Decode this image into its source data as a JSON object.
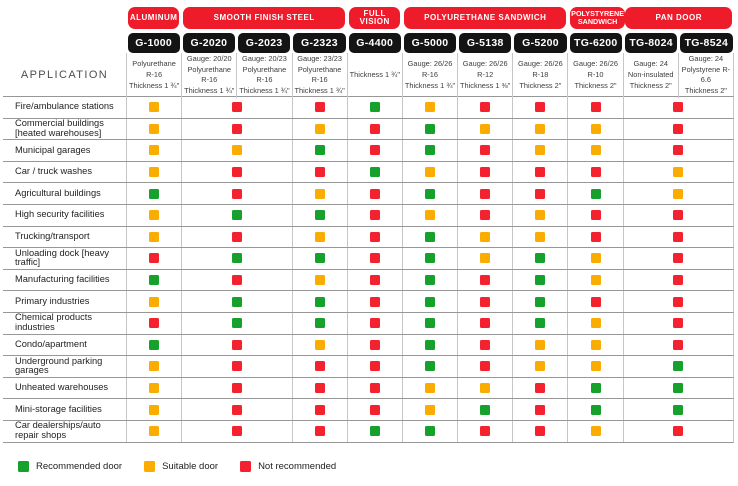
{
  "application_header": "APPLICATION",
  "colors": {
    "category_pill_red": "#EE1B2B",
    "model_pill_black": "#141414",
    "recommended_green": "#16A02C",
    "suitable_yellow": "#FAAD00",
    "not_recommended_red": "#F4222F",
    "row_line": "#979797",
    "column_line": "#C6C6C6"
  },
  "categories": [
    {
      "label": "ALUMINUM",
      "span": 1
    },
    {
      "label": "SMOOTH FINISH STEEL",
      "span": 3
    },
    {
      "label": "FULL VISION",
      "span": 1
    },
    {
      "label": "POLYURETHANE SANDWICH",
      "span": 3
    },
    {
      "label": "POLYSTYRENE SANDWICH",
      "span": 1
    },
    {
      "label": "PAN DOOR",
      "span": 2
    }
  ],
  "models": [
    {
      "name": "G-1000",
      "spec": [
        "Polyurethane R-16",
        "Thickness 1 ¾\""
      ]
    },
    {
      "name": "G-2020",
      "spec": [
        "Gauge: 20/20",
        "Polyurethane R-16",
        "Thickness 1 ¾\""
      ]
    },
    {
      "name": "G-2023",
      "spec": [
        "Gauge: 20/23",
        "Polyurethane R-16",
        "Thickness 1 ¾\""
      ]
    },
    {
      "name": "G-2323",
      "spec": [
        "Gauge: 23/23",
        "Polyurethane R-16",
        "Thickness 1 ¾\""
      ]
    },
    {
      "name": "G-4400",
      "spec": [
        "Thickness 1 ¾\""
      ]
    },
    {
      "name": "G-5000",
      "spec": [
        "Gauge: 26/26",
        "R-16",
        "Thickness 1 ¾\""
      ]
    },
    {
      "name": "G-5138",
      "spec": [
        "Gauge: 26/26",
        "R-12",
        "Thickness 1 ⅜\""
      ]
    },
    {
      "name": "G-5200",
      "spec": [
        "Gauge: 26/26",
        "R-18",
        "Thickness 2\""
      ]
    },
    {
      "name": "TG-6200",
      "spec": [
        "Gauge: 26/26",
        "R-10",
        "Thickness 2\""
      ]
    },
    {
      "name": "TG-8024",
      "spec": [
        "Gauge: 24",
        "Non-insulated",
        "Thickness 2\""
      ]
    },
    {
      "name": "TG-8524",
      "spec": [
        "Gauge: 24",
        "Polystyrene R-6.6",
        "Thickness 2\""
      ]
    }
  ],
  "legend": [
    {
      "key": "recommended",
      "label": "Recommended door"
    },
    {
      "key": "suitable",
      "label": "Suitable door"
    },
    {
      "key": "not-recommended",
      "label": "Not recommended"
    }
  ],
  "chart_data": {
    "type": "table",
    "row_header": "APPLICATION",
    "columns": [
      "G-1000",
      "G-2020 / G-2023",
      "G-2323",
      "G-4400",
      "G-5000",
      "G-5138",
      "G-5200",
      "TG-6200",
      "TG-8024 / TG-8524"
    ],
    "column_spans": [
      1,
      2,
      1,
      1,
      1,
      1,
      1,
      1,
      2
    ],
    "rating_scale": {
      "recommended": "Recommended door",
      "suitable": "Suitable door",
      "not-recommended": "Not recommended"
    },
    "rows": [
      {
        "application": "Fire/ambulance stations",
        "ratings": [
          "suitable",
          "not-recommended",
          "not-recommended",
          "recommended",
          "suitable",
          "not-recommended",
          "not-recommended",
          "not-recommended",
          "not-recommended"
        ]
      },
      {
        "application": "Commercial buildings [heated warehouses]",
        "ratings": [
          "suitable",
          "not-recommended",
          "suitable",
          "not-recommended",
          "recommended",
          "suitable",
          "suitable",
          "suitable",
          "not-recommended"
        ]
      },
      {
        "application": "Municipal garages",
        "ratings": [
          "suitable",
          "suitable",
          "recommended",
          "not-recommended",
          "recommended",
          "not-recommended",
          "suitable",
          "suitable",
          "not-recommended"
        ]
      },
      {
        "application": "Car / truck washes",
        "ratings": [
          "suitable",
          "not-recommended",
          "not-recommended",
          "recommended",
          "suitable",
          "not-recommended",
          "not-recommended",
          "not-recommended",
          "suitable"
        ]
      },
      {
        "application": "Agricultural buildings",
        "ratings": [
          "recommended",
          "not-recommended",
          "suitable",
          "not-recommended",
          "recommended",
          "not-recommended",
          "not-recommended",
          "recommended",
          "suitable"
        ]
      },
      {
        "application": "High security facilities",
        "ratings": [
          "suitable",
          "recommended",
          "recommended",
          "not-recommended",
          "suitable",
          "not-recommended",
          "suitable",
          "not-recommended",
          "not-recommended"
        ]
      },
      {
        "application": "Trucking/transport",
        "ratings": [
          "suitable",
          "not-recommended",
          "suitable",
          "not-recommended",
          "recommended",
          "suitable",
          "suitable",
          "not-recommended",
          "not-recommended"
        ]
      },
      {
        "application": "Unloading dock [heavy traffic]",
        "ratings": [
          "not-recommended",
          "recommended",
          "recommended",
          "not-recommended",
          "recommended",
          "suitable",
          "recommended",
          "suitable",
          "not-recommended"
        ]
      },
      {
        "application": "Manufacturing facilities",
        "ratings": [
          "recommended",
          "not-recommended",
          "suitable",
          "not-recommended",
          "recommended",
          "not-recommended",
          "recommended",
          "suitable",
          "not-recommended"
        ]
      },
      {
        "application": "Primary industries",
        "ratings": [
          "suitable",
          "recommended",
          "recommended",
          "not-recommended",
          "recommended",
          "not-recommended",
          "recommended",
          "not-recommended",
          "not-recommended"
        ]
      },
      {
        "application": "Chemical products industries",
        "ratings": [
          "not-recommended",
          "recommended",
          "recommended",
          "not-recommended",
          "recommended",
          "not-recommended",
          "recommended",
          "suitable",
          "not-recommended"
        ]
      },
      {
        "application": "Condo/apartment",
        "ratings": [
          "recommended",
          "not-recommended",
          "suitable",
          "not-recommended",
          "recommended",
          "not-recommended",
          "suitable",
          "suitable",
          "not-recommended"
        ]
      },
      {
        "application": "Underground parking garages",
        "ratings": [
          "suitable",
          "not-recommended",
          "not-recommended",
          "not-recommended",
          "recommended",
          "not-recommended",
          "suitable",
          "suitable",
          "recommended"
        ]
      },
      {
        "application": "Unheated warehouses",
        "ratings": [
          "suitable",
          "not-recommended",
          "not-recommended",
          "not-recommended",
          "suitable",
          "suitable",
          "not-recommended",
          "recommended",
          "recommended"
        ]
      },
      {
        "application": "Mini-storage facilities",
        "ratings": [
          "suitable",
          "not-recommended",
          "not-recommended",
          "not-recommended",
          "suitable",
          "recommended",
          "not-recommended",
          "recommended",
          "recommended"
        ]
      },
      {
        "application": "Car dealerships/auto repair shops",
        "ratings": [
          "suitable",
          "not-recommended",
          "not-recommended",
          "recommended",
          "recommended",
          "not-recommended",
          "not-recommended",
          "suitable",
          "not-recommended"
        ]
      }
    ]
  }
}
